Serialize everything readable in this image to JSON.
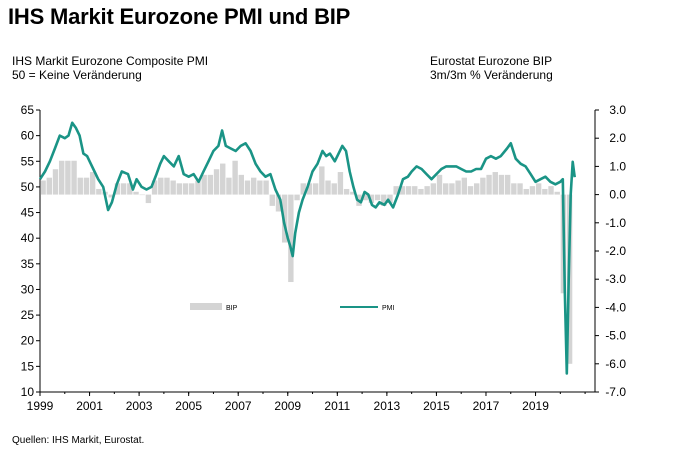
{
  "title": "IHS Markit Eurozone PMI und BIP",
  "left_subtitle": [
    "IHS Markit Eurozone Composite PMI",
    "50 = Keine Veränderung"
  ],
  "right_subtitle": [
    "Eurostat Eurozone BIP",
    "3m/3m % Veränderung"
  ],
  "source": "Quellen:  IHS Markit,  Eurostat.",
  "colors": {
    "pmi": "#1a9486",
    "gdp": "#d4d4d4",
    "axis": "#000000"
  },
  "chart_data": {
    "type": "bar+line",
    "x_ticks": [
      "1999",
      "2001",
      "2003",
      "2005",
      "2007",
      "2009",
      "2011",
      "2013",
      "2015",
      "2017",
      "2019"
    ],
    "x_range": [
      1999.0,
      2021.4
    ],
    "y_left": {
      "range": [
        10,
        65
      ],
      "ticks": [
        "10",
        "15",
        "20",
        "25",
        "30",
        "35",
        "40",
        "45",
        "50",
        "55",
        "60",
        "65"
      ]
    },
    "y_right": {
      "range": [
        -7.0,
        3.0
      ],
      "ticks": [
        "3.0",
        "2.0",
        "1.0",
        "0.0",
        "-1.0",
        "-2.0",
        "-3.0",
        "-4.0",
        "-5.0",
        "-6.0",
        "-7.0"
      ]
    },
    "legend": {
      "position": "inside-bottom-center",
      "entries": [
        "BIP",
        "PMI"
      ]
    },
    "series": [
      {
        "name": "PMI",
        "axis": "left",
        "kind": "line",
        "points": [
          [
            1999.0,
            51.5
          ],
          [
            1999.2,
            53.0
          ],
          [
            1999.4,
            55.0
          ],
          [
            1999.6,
            57.5
          ],
          [
            1999.8,
            60.0
          ],
          [
            2000.0,
            59.5
          ],
          [
            2000.15,
            60.0
          ],
          [
            2000.3,
            62.5
          ],
          [
            2000.45,
            61.5
          ],
          [
            2000.6,
            60.0
          ],
          [
            2000.75,
            56.5
          ],
          [
            2000.9,
            56.0
          ],
          [
            2001.05,
            54.5
          ],
          [
            2001.2,
            53.0
          ],
          [
            2001.35,
            51.5
          ],
          [
            2001.55,
            50.0
          ],
          [
            2001.75,
            45.5
          ],
          [
            2001.9,
            47.0
          ],
          [
            2002.1,
            50.5
          ],
          [
            2002.3,
            53.0
          ],
          [
            2002.55,
            52.5
          ],
          [
            2002.75,
            49.5
          ],
          [
            2002.9,
            51.5
          ],
          [
            2003.1,
            50.0
          ],
          [
            2003.3,
            49.5
          ],
          [
            2003.5,
            50.0
          ],
          [
            2003.7,
            52.5
          ],
          [
            2003.85,
            54.5
          ],
          [
            2004.0,
            56.0
          ],
          [
            2004.2,
            55.0
          ],
          [
            2004.4,
            54.0
          ],
          [
            2004.6,
            56.0
          ],
          [
            2004.8,
            52.5
          ],
          [
            2005.0,
            52.0
          ],
          [
            2005.2,
            52.5
          ],
          [
            2005.4,
            51.0
          ],
          [
            2005.6,
            53.0
          ],
          [
            2005.8,
            55.0
          ],
          [
            2006.0,
            57.0
          ],
          [
            2006.2,
            58.0
          ],
          [
            2006.35,
            61.0
          ],
          [
            2006.5,
            58.0
          ],
          [
            2006.7,
            57.5
          ],
          [
            2006.9,
            57.0
          ],
          [
            2007.1,
            58.0
          ],
          [
            2007.3,
            58.5
          ],
          [
            2007.5,
            57.0
          ],
          [
            2007.7,
            54.5
          ],
          [
            2007.9,
            53.0
          ],
          [
            2008.1,
            52.0
          ],
          [
            2008.3,
            52.5
          ],
          [
            2008.5,
            49.5
          ],
          [
            2008.7,
            47.5
          ],
          [
            2008.85,
            43.0
          ],
          [
            2009.0,
            40.0
          ],
          [
            2009.1,
            38.5
          ],
          [
            2009.2,
            36.5
          ],
          [
            2009.3,
            41.0
          ],
          [
            2009.45,
            45.0
          ],
          [
            2009.6,
            47.5
          ],
          [
            2009.8,
            50.0
          ],
          [
            2010.0,
            53.0
          ],
          [
            2010.2,
            54.5
          ],
          [
            2010.4,
            57.0
          ],
          [
            2010.55,
            56.0
          ],
          [
            2010.7,
            56.5
          ],
          [
            2010.9,
            55.0
          ],
          [
            2011.05,
            56.5
          ],
          [
            2011.2,
            58.0
          ],
          [
            2011.35,
            57.0
          ],
          [
            2011.5,
            53.0
          ],
          [
            2011.65,
            50.0
          ],
          [
            2011.8,
            47.5
          ],
          [
            2011.95,
            47.0
          ],
          [
            2012.1,
            49.0
          ],
          [
            2012.25,
            48.5
          ],
          [
            2012.4,
            46.5
          ],
          [
            2012.55,
            46.0
          ],
          [
            2012.7,
            47.0
          ],
          [
            2012.9,
            46.5
          ],
          [
            2013.05,
            47.5
          ],
          [
            2013.25,
            46.0
          ],
          [
            2013.45,
            48.5
          ],
          [
            2013.65,
            51.5
          ],
          [
            2013.85,
            52.0
          ],
          [
            2014.0,
            53.0
          ],
          [
            2014.2,
            54.0
          ],
          [
            2014.4,
            53.5
          ],
          [
            2014.6,
            52.5
          ],
          [
            2014.8,
            51.5
          ],
          [
            2015.0,
            52.5
          ],
          [
            2015.2,
            53.5
          ],
          [
            2015.4,
            54.0
          ],
          [
            2015.6,
            54.0
          ],
          [
            2015.8,
            54.0
          ],
          [
            2016.0,
            53.5
          ],
          [
            2016.2,
            53.0
          ],
          [
            2016.4,
            53.0
          ],
          [
            2016.6,
            53.5
          ],
          [
            2016.8,
            53.5
          ],
          [
            2017.0,
            55.5
          ],
          [
            2017.2,
            56.0
          ],
          [
            2017.4,
            55.5
          ],
          [
            2017.6,
            56.0
          ],
          [
            2017.85,
            57.5
          ],
          [
            2018.0,
            58.5
          ],
          [
            2018.2,
            55.5
          ],
          [
            2018.4,
            54.5
          ],
          [
            2018.6,
            54.0
          ],
          [
            2018.8,
            52.5
          ],
          [
            2019.0,
            51.0
          ],
          [
            2019.2,
            51.5
          ],
          [
            2019.4,
            52.0
          ],
          [
            2019.6,
            51.0
          ],
          [
            2019.8,
            50.5
          ],
          [
            2020.0,
            51.0
          ],
          [
            2020.1,
            51.5
          ],
          [
            2020.18,
            29.7
          ],
          [
            2020.26,
            13.6
          ],
          [
            2020.34,
            31.9
          ],
          [
            2020.42,
            48.5
          ],
          [
            2020.5,
            54.9
          ],
          [
            2020.58,
            51.9
          ]
        ]
      },
      {
        "name": "BIP",
        "axis": "right",
        "kind": "bar",
        "points": [
          [
            1999.125,
            0.5
          ],
          [
            1999.375,
            0.6
          ],
          [
            1999.625,
            0.9
          ],
          [
            1999.875,
            1.2
          ],
          [
            2000.125,
            1.2
          ],
          [
            2000.375,
            1.2
          ],
          [
            2000.625,
            0.6
          ],
          [
            2000.875,
            0.6
          ],
          [
            2001.125,
            0.8
          ],
          [
            2001.375,
            0.2
          ],
          [
            2001.625,
            0.1
          ],
          [
            2001.875,
            -0.1
          ],
          [
            2002.125,
            0.4
          ],
          [
            2002.375,
            0.4
          ],
          [
            2002.625,
            0.4
          ],
          [
            2002.875,
            0.1
          ],
          [
            2003.125,
            0.0
          ],
          [
            2003.375,
            -0.3
          ],
          [
            2003.625,
            0.5
          ],
          [
            2003.875,
            0.6
          ],
          [
            2004.125,
            0.6
          ],
          [
            2004.375,
            0.5
          ],
          [
            2004.625,
            0.4
          ],
          [
            2004.875,
            0.4
          ],
          [
            2005.125,
            0.4
          ],
          [
            2005.375,
            0.5
          ],
          [
            2005.625,
            0.7
          ],
          [
            2005.875,
            0.7
          ],
          [
            2006.125,
            0.9
          ],
          [
            2006.375,
            1.1
          ],
          [
            2006.625,
            0.6
          ],
          [
            2006.875,
            1.2
          ],
          [
            2007.125,
            0.7
          ],
          [
            2007.375,
            0.5
          ],
          [
            2007.625,
            0.6
          ],
          [
            2007.875,
            0.5
          ],
          [
            2008.125,
            0.5
          ],
          [
            2008.375,
            -0.4
          ],
          [
            2008.625,
            -0.6
          ],
          [
            2008.875,
            -1.7
          ],
          [
            2009.125,
            -3.1
          ],
          [
            2009.375,
            -0.2
          ],
          [
            2009.625,
            0.4
          ],
          [
            2009.875,
            0.4
          ],
          [
            2010.125,
            0.4
          ],
          [
            2010.375,
            1.0
          ],
          [
            2010.625,
            0.5
          ],
          [
            2010.875,
            0.4
          ],
          [
            2011.125,
            0.8
          ],
          [
            2011.375,
            0.2
          ],
          [
            2011.625,
            0.1
          ],
          [
            2011.875,
            -0.4
          ],
          [
            2012.125,
            -0.2
          ],
          [
            2012.375,
            -0.3
          ],
          [
            2012.625,
            -0.2
          ],
          [
            2012.875,
            -0.4
          ],
          [
            2013.125,
            -0.3
          ],
          [
            2013.375,
            0.3
          ],
          [
            2013.625,
            0.3
          ],
          [
            2013.875,
            0.3
          ],
          [
            2014.125,
            0.3
          ],
          [
            2014.375,
            0.2
          ],
          [
            2014.625,
            0.3
          ],
          [
            2014.875,
            0.4
          ],
          [
            2015.125,
            0.7
          ],
          [
            2015.375,
            0.4
          ],
          [
            2015.625,
            0.4
          ],
          [
            2015.875,
            0.5
          ],
          [
            2016.125,
            0.6
          ],
          [
            2016.375,
            0.3
          ],
          [
            2016.625,
            0.4
          ],
          [
            2016.875,
            0.6
          ],
          [
            2017.125,
            0.7
          ],
          [
            2017.375,
            0.8
          ],
          [
            2017.625,
            0.7
          ],
          [
            2017.875,
            0.7
          ],
          [
            2018.125,
            0.4
          ],
          [
            2018.375,
            0.4
          ],
          [
            2018.625,
            0.2
          ],
          [
            2018.875,
            0.3
          ],
          [
            2019.125,
            0.4
          ],
          [
            2019.375,
            0.2
          ],
          [
            2019.625,
            0.3
          ],
          [
            2019.875,
            0.1
          ],
          [
            2020.125,
            -3.5
          ],
          [
            2020.375,
            -6.0
          ]
        ]
      }
    ]
  }
}
